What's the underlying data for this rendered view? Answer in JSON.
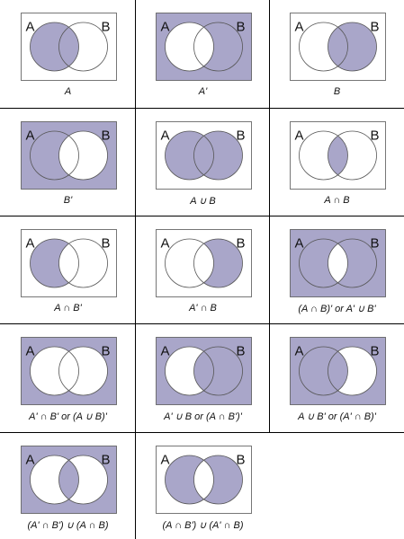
{
  "shade_color": "#a9a6c9",
  "set_labels": {
    "a": "A",
    "b": "B"
  },
  "diagrams": [
    {
      "id": "a",
      "caption": "A",
      "regions": {
        "outside": false,
        "a_only": true,
        "both": true,
        "b_only": false
      }
    },
    {
      "id": "a-complement",
      "caption": "A'",
      "regions": {
        "outside": true,
        "a_only": false,
        "both": false,
        "b_only": true
      }
    },
    {
      "id": "b",
      "caption": "B",
      "regions": {
        "outside": false,
        "a_only": false,
        "both": true,
        "b_only": true
      }
    },
    {
      "id": "b-complement",
      "caption": "B'",
      "regions": {
        "outside": true,
        "a_only": true,
        "both": false,
        "b_only": false
      }
    },
    {
      "id": "a-union-b",
      "caption": "A ∪ B",
      "regions": {
        "outside": false,
        "a_only": true,
        "both": true,
        "b_only": true
      }
    },
    {
      "id": "a-intersect-b",
      "caption": "A ∩ B",
      "regions": {
        "outside": false,
        "a_only": false,
        "both": true,
        "b_only": false
      }
    },
    {
      "id": "a-and-not-b",
      "caption": "A ∩ B'",
      "regions": {
        "outside": false,
        "a_only": true,
        "both": false,
        "b_only": false
      }
    },
    {
      "id": "not-a-and-b",
      "caption": "A' ∩ B",
      "regions": {
        "outside": false,
        "a_only": false,
        "both": false,
        "b_only": true
      }
    },
    {
      "id": "not-a-and-b-compl",
      "caption": "(A ∩ B)'   or   A' ∪ B'",
      "regions": {
        "outside": true,
        "a_only": true,
        "both": false,
        "b_only": true
      }
    },
    {
      "id": "not-a-and-not-b",
      "caption": "A' ∩ B'   or   (A ∪ B)'",
      "regions": {
        "outside": true,
        "a_only": false,
        "both": false,
        "b_only": false
      }
    },
    {
      "id": "not-a-or-b",
      "caption": "A' ∪ B   or   (A ∩ B')'",
      "regions": {
        "outside": true,
        "a_only": false,
        "both": true,
        "b_only": true
      }
    },
    {
      "id": "a-or-not-b",
      "caption": "A ∪ B'   or   (A' ∩ B)'",
      "regions": {
        "outside": true,
        "a_only": true,
        "both": true,
        "b_only": false
      }
    },
    {
      "id": "equivalence",
      "caption": "(A' ∩ B') ∪ (A ∩ B)",
      "regions": {
        "outside": true,
        "a_only": false,
        "both": true,
        "b_only": false
      }
    },
    {
      "id": "symmetric-diff",
      "caption": "(A ∩ B') ∪ (A' ∩ B)",
      "regions": {
        "outside": false,
        "a_only": true,
        "both": false,
        "b_only": true
      }
    }
  ]
}
